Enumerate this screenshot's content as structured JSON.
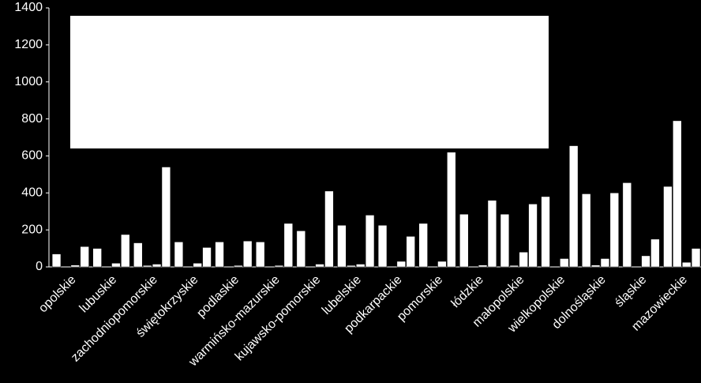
{
  "chart_data": {
    "type": "bar",
    "categories": [
      "opolskie",
      "lubuskie",
      "zachodniopomorskie",
      "świętokrzyskie",
      "podlaskie",
      "warmińsko-mazurskie",
      "kujawsko-pomorskie",
      "lubelskie",
      "podkarpackie",
      "pomorskie",
      "łódzkie",
      "małopolskie",
      "wielkopolskie",
      "dolnośląskie",
      "śląskie",
      "mazowieckie"
    ],
    "series": [
      {
        "color": "#ffffff",
        "values": [
          70,
          100,
          130,
          135,
          135,
          135,
          195,
          225,
          225,
          235,
          285,
          285,
          380,
          395,
          455,
          435
        ]
      },
      {
        "color": "#ffffff",
        "values": [
          0,
          0,
          8,
          0,
          0,
          0,
          0,
          8,
          0,
          0,
          0,
          8,
          0,
          10,
          0,
          790
        ]
      },
      {
        "color": "#ffffff",
        "values": [
          10,
          20,
          15,
          20,
          8,
          8,
          15,
          15,
          30,
          30,
          10,
          80,
          45,
          45,
          60,
          25
        ]
      },
      {
        "color": "#ffffff",
        "values": [
          110,
          175,
          540,
          105,
          140,
          235,
          410,
          280,
          165,
          620,
          360,
          340,
          655,
          400,
          150,
          100
        ]
      }
    ],
    "ylim": [
      0,
      1400
    ],
    "yticks": [
      0,
      200,
      400,
      600,
      800,
      1000,
      1200,
      1400
    ],
    "grid": false
  }
}
